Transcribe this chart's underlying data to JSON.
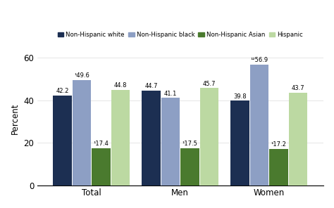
{
  "categories": [
    "Total",
    "Men",
    "Women"
  ],
  "series": {
    "Non-Hispanic white": [
      42.2,
      44.7,
      39.8
    ],
    "Non-Hispanic black": [
      49.6,
      41.1,
      56.9
    ],
    "Non-Hispanic Asian": [
      17.4,
      17.5,
      17.2
    ],
    "Hispanic": [
      44.8,
      45.7,
      43.7
    ]
  },
  "superscripts": {
    "Non-Hispanic black": [
      "¹",
      "",
      "¹²"
    ],
    "Non-Hispanic Asian": [
      "¹",
      "¹",
      "¹"
    ]
  },
  "val_labels": {
    "Non-Hispanic white": [
      "42.2",
      "44.7",
      "39.8"
    ],
    "Non-Hispanic black": [
      "49.6",
      "41.1",
      "56.9"
    ],
    "Non-Hispanic Asian": [
      "17.4",
      "17.5",
      "17.2"
    ],
    "Hispanic": [
      "44.8",
      "45.7",
      "43.7"
    ]
  },
  "colors": {
    "Non-Hispanic white": "#1c2f52",
    "Non-Hispanic black": "#8d9fc4",
    "Non-Hispanic Asian": "#4a7a2e",
    "Hispanic": "#bcd9a2"
  },
  "ylabel": "Percent",
  "ylim": [
    0,
    63
  ],
  "yticks": [
    0,
    20,
    40,
    60
  ],
  "bar_width": 0.13,
  "group_centers": [
    0.0,
    0.62,
    1.24
  ],
  "figsize": [
    4.74,
    2.96
  ],
  "dpi": 100
}
